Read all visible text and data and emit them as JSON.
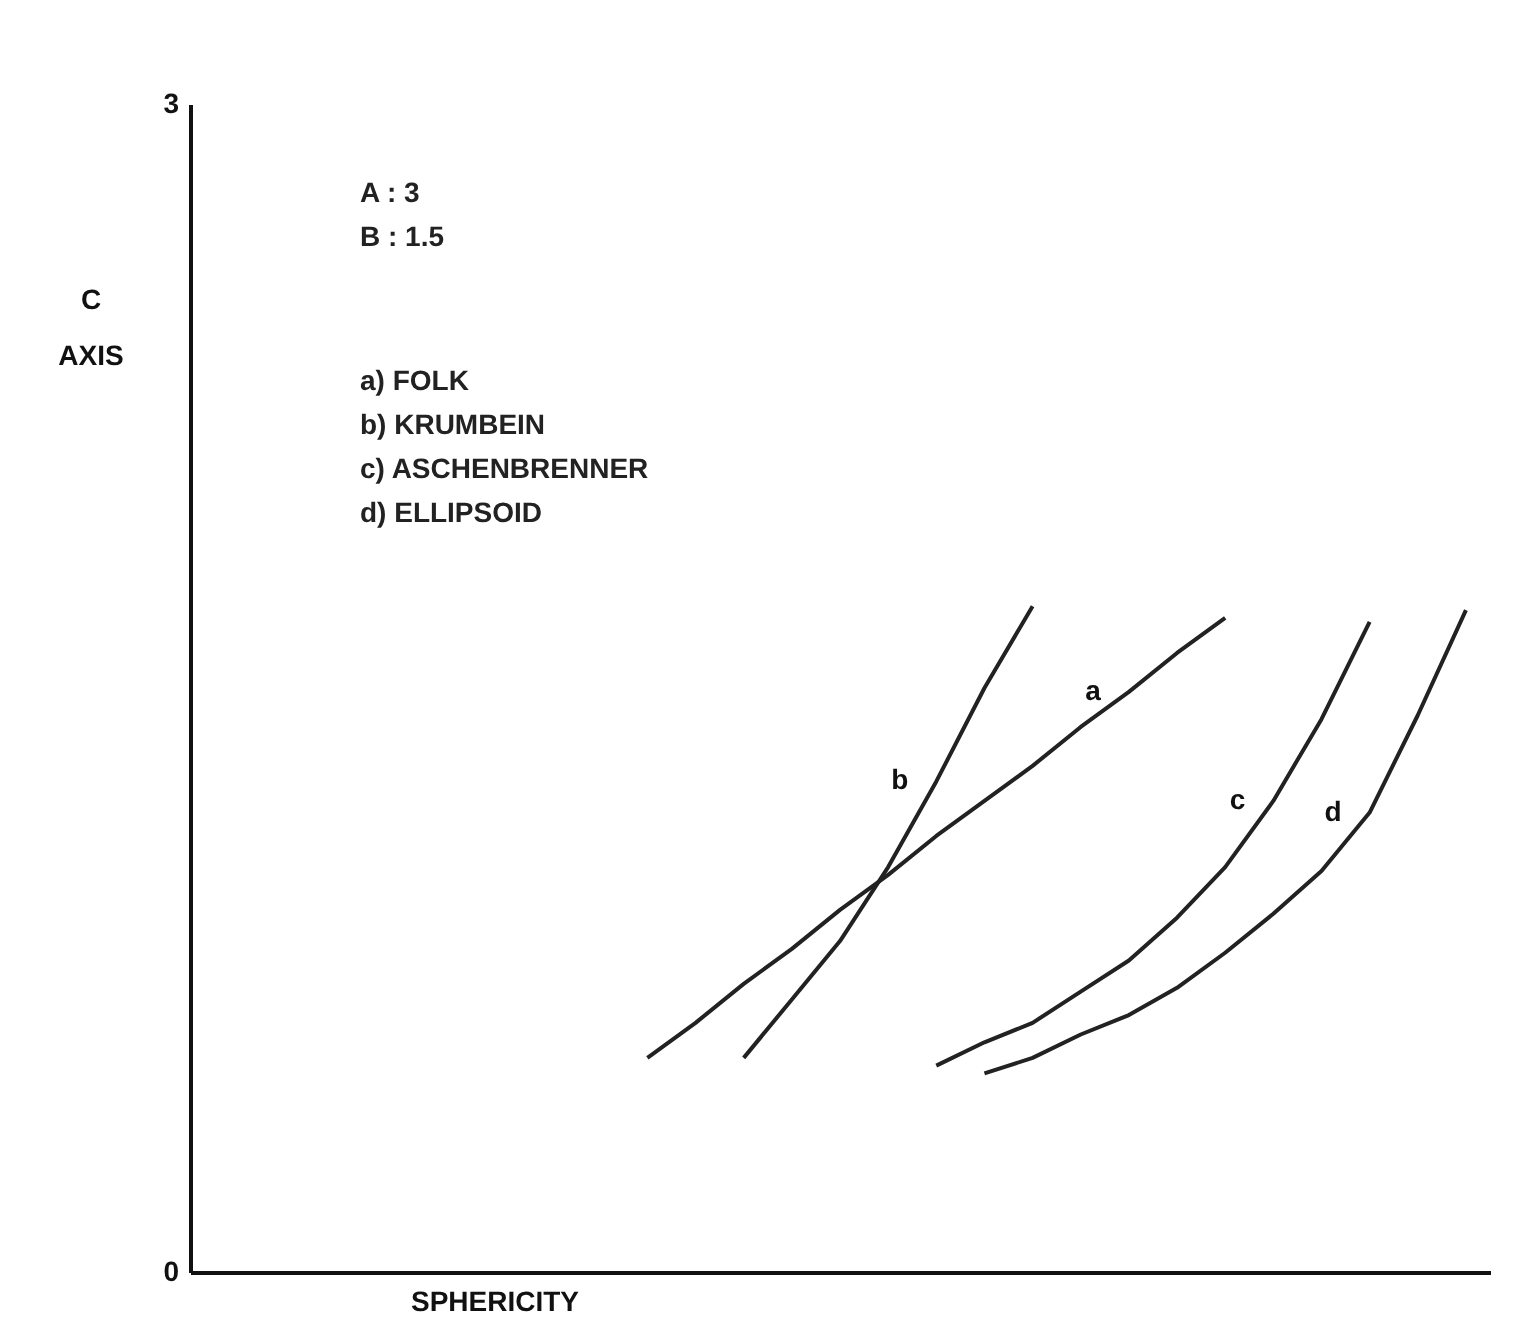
{
  "chart_data": {
    "type": "line",
    "xlabel": "SPHERICITY",
    "ylabel": "C AXIS",
    "ylim": [
      0,
      3
    ],
    "yticks": [
      {
        "value": 0,
        "label": "0"
      },
      {
        "value": 3,
        "label": "3"
      }
    ],
    "tick_labels": "y",
    "categories": [
      null,
      null,
      null,
      null,
      null,
      null,
      null,
      null,
      null,
      null,
      null,
      null,
      null,
      null,
      null,
      null,
      null,
      null,
      null,
      null,
      null,
      null,
      null,
      null,
      null,
      null,
      null
    ],
    "annotations": [
      "A : 3",
      "B : 1.5",
      "a) FOLK",
      "b) KRUMBEIN",
      "c) ASCHENBRENNER",
      "d) ELLIPSOID"
    ],
    "series": [
      {
        "name": "a",
        "color": "#222222",
        "values": [
          null,
          null,
          null,
          null,
          null,
          null,
          null,
          null,
          null,
          0.55,
          0.64,
          0.74,
          0.83,
          0.93,
          1.02,
          1.12,
          1.21,
          1.3,
          1.4,
          1.49,
          1.59,
          1.68,
          null,
          null,
          null,
          null,
          null
        ]
      },
      {
        "name": "b",
        "color": "#222222",
        "values": [
          null,
          null,
          null,
          null,
          null,
          null,
          null,
          null,
          null,
          null,
          null,
          0.55,
          0.7,
          0.85,
          1.04,
          1.26,
          1.5,
          1.71,
          null,
          null,
          null,
          null,
          null,
          null,
          null,
          null,
          null
        ]
      },
      {
        "name": "c",
        "color": "#222222",
        "values": [
          null,
          null,
          null,
          null,
          null,
          null,
          null,
          null,
          null,
          null,
          null,
          null,
          null,
          null,
          null,
          0.53,
          0.59,
          0.64,
          0.72,
          0.8,
          0.91,
          1.04,
          1.21,
          1.42,
          1.67,
          null,
          null
        ]
      },
      {
        "name": "d",
        "color": "#222222",
        "values": [
          null,
          null,
          null,
          null,
          null,
          null,
          null,
          null,
          null,
          null,
          null,
          null,
          null,
          null,
          null,
          null,
          0.51,
          0.55,
          0.61,
          0.66,
          0.73,
          0.82,
          0.92,
          1.03,
          1.18,
          1.43,
          1.7
        ]
      }
    ]
  }
}
